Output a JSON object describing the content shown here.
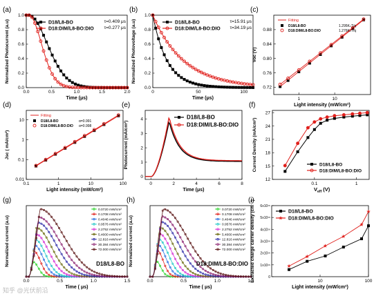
{
  "figure": {
    "watermark": "知乎 @光伏前沿"
  },
  "chart_data": [
    {
      "panel": "(a)",
      "type": "line",
      "xlabel": "Time (μs)",
      "ylabel": "Normalized  Photocurrent (a.u)",
      "xlim": [
        0.0,
        2.0
      ],
      "ylim": [
        0.0,
        1.0
      ],
      "xticks": [
        "0.0",
        "0.5",
        "1.0",
        "1.5",
        "2.0"
      ],
      "yticks": [
        "0.0",
        "0.2",
        "0.4",
        "0.6",
        "0.8",
        "1.0"
      ],
      "series": [
        {
          "name": "D18/L8-BO",
          "color": "#000000",
          "marker": "square",
          "tau": 0.409
        },
        {
          "name": "D18:DIM/L8-BO:DIO",
          "color": "#e0201c",
          "marker": "circle",
          "tau": 0.277
        }
      ],
      "annotations": [
        "τ=0.409 μs",
        "τ=0.277 μs"
      ]
    },
    {
      "panel": "(b)",
      "type": "line",
      "xlabel": "Time (μs)",
      "ylabel": "Normalized  Photovoltage (a.u)",
      "xlim": [
        0,
        110
      ],
      "ylim": [
        0.0,
        1.0
      ],
      "xticks": [
        "0",
        "50",
        "100"
      ],
      "yticks": [
        "0.0",
        "0.2",
        "0.4",
        "0.6",
        "0.8",
        "1.0"
      ],
      "series": [
        {
          "name": "D18/L8-BO",
          "color": "#000000",
          "marker": "square",
          "tau": 15.91
        },
        {
          "name": "D18:DIM/L8-BO:DIO",
          "color": "#e0201c",
          "marker": "circle",
          "tau": 34.19
        }
      ],
      "annotations": [
        "τ=15.91 μs",
        "τ=34.19 μs"
      ]
    },
    {
      "panel": "(c)",
      "type": "scatter",
      "xlabel": "Light intensity (mW/cm²)",
      "ylabel": "Voc (V)",
      "xscale": "log",
      "xlim": [
        0.2,
        100
      ],
      "ylim": [
        0.7,
        0.92
      ],
      "xticks": [
        "1",
        "10"
      ],
      "yticks": [
        "0.72",
        "0.76",
        "0.80",
        "0.84",
        "0.88"
      ],
      "legend": [
        "Fitting",
        "D18/L8-BO",
        "D18:DIM/L8-BO:DIO"
      ],
      "slopes": [
        "1.295KₖT/q",
        "1.276KₖT/q"
      ],
      "series": [
        {
          "name": "D18/L8-BO",
          "color": "#000000",
          "marker": "square",
          "x": [
            0.3,
            0.5,
            1.0,
            2.0,
            4.0,
            8.0,
            16.0,
            32.0,
            64.0
          ],
          "y": [
            0.722,
            0.739,
            0.763,
            0.787,
            0.811,
            0.835,
            0.859,
            0.883,
            0.907
          ]
        },
        {
          "name": "D18:DIM/L8-BO:DIO",
          "color": "#e0201c",
          "marker": "circle",
          "x": [
            0.3,
            0.5,
            1.0,
            2.0,
            4.0,
            8.0,
            16.0,
            32.0,
            64.0
          ],
          "y": [
            0.728,
            0.745,
            0.768,
            0.792,
            0.815,
            0.838,
            0.862,
            0.885,
            0.909
          ]
        }
      ]
    },
    {
      "panel": "(d)",
      "type": "scatter",
      "xlabel": "Light intensity (mW/cm²)",
      "ylabel": "Jsc ( mA/cm²)",
      "xscale": "log",
      "yscale": "log",
      "xlim": [
        0.1,
        100
      ],
      "ylim": [
        0.01,
        30
      ],
      "xticks": [
        "0.1",
        "1",
        "10",
        "100"
      ],
      "yticks": [
        "0.01",
        "0.1",
        "1",
        "10"
      ],
      "legend": [
        "Fitting",
        "D18/L8-BO",
        "D18:DIM/L8-BO:DIO"
      ],
      "alphas": [
        "α=0.991",
        "α=0.998"
      ],
      "series": [
        {
          "name": "D18/L8-BO",
          "color": "#000000",
          "marker": "square",
          "x": [
            0.2,
            0.4,
            0.8,
            1.6,
            3.2,
            6.4,
            12.8,
            25.6,
            72.0
          ],
          "y": [
            0.047,
            0.093,
            0.185,
            0.37,
            0.73,
            1.46,
            2.9,
            5.8,
            16.0
          ]
        },
        {
          "name": "D18:DIM/L8-BO:DIO",
          "color": "#e0201c",
          "marker": "circle",
          "x": [
            0.2,
            0.4,
            0.8,
            1.6,
            3.2,
            6.4,
            12.8,
            25.6,
            72.0
          ],
          "y": [
            0.05,
            0.1,
            0.2,
            0.4,
            0.8,
            1.6,
            3.2,
            6.4,
            17.5
          ]
        }
      ]
    },
    {
      "panel": "(e)",
      "type": "line",
      "xlabel": "Time (μs)",
      "ylabel": "Photocurrent (mA/cm²)",
      "xlim": [
        -0.5,
        8
      ],
      "ylim": [
        -0.2,
        4.6
      ],
      "xticks": [
        "0",
        "2",
        "4",
        "6",
        "8"
      ],
      "yticks": [
        "0",
        "1",
        "2",
        "3",
        "4"
      ],
      "series": [
        {
          "name": "D18/L8-BO",
          "color": "#000000",
          "marker": "square",
          "peak": 3.85,
          "peak_time": 1.6,
          "plateau": 1.05
        },
        {
          "name": "D18:DIM/L8-BO:DIO",
          "color": "#e0201c",
          "marker": "circle",
          "peak": 4.15,
          "peak_time": 1.6,
          "plateau": 1.1
        }
      ]
    },
    {
      "panel": "(f)",
      "type": "line",
      "xlabel": "V",
      "xlabel_sub": "eff",
      "xlabel_unit": " (V)",
      "ylabel": "Current Density (mA/cm²)",
      "xscale": "log",
      "xlim": [
        0.01,
        2
      ],
      "ylim": [
        12,
        27.5
      ],
      "xticks": [
        "0.1",
        "1"
      ],
      "yticks": [
        "12",
        "15",
        "18",
        "21",
        "24",
        "27"
      ],
      "series": [
        {
          "name": "D18/L8-BO",
          "color": "#000000",
          "marker": "square",
          "x": [
            0.02,
            0.04,
            0.07,
            0.1,
            0.14,
            0.2,
            0.3,
            0.5,
            0.8,
            1.2,
            1.8
          ],
          "y": [
            13.8,
            18.2,
            21.4,
            23.2,
            24.6,
            25.3,
            25.7,
            26.0,
            26.2,
            26.35,
            26.5
          ]
        },
        {
          "name": "D18:DIM/L8-BO:DIO",
          "color": "#e0201c",
          "marker": "circle",
          "x": [
            0.02,
            0.04,
            0.07,
            0.1,
            0.14,
            0.2,
            0.3,
            0.5,
            0.8,
            1.2,
            1.8
          ],
          "y": [
            15.1,
            20.1,
            23.6,
            24.9,
            25.6,
            26.0,
            26.3,
            26.5,
            26.7,
            26.85,
            27.0
          ]
        }
      ]
    },
    {
      "panel": "(g)",
      "type": "line",
      "xlabel": "Time ( μs)",
      "ylabel": "Normalized current (a.u)",
      "xlim": [
        0.0,
        1.5
      ],
      "ylim": [
        0,
        1.05
      ],
      "xticks": [
        "0.0",
        "0.5",
        "1.0",
        "1.5"
      ],
      "sample": "D18/L8-BO",
      "series": [
        {
          "name": "0.0720 mW/cm²",
          "color": "#2bd42b",
          "peak": 0.22,
          "peak_time": 0.1,
          "width": 0.11
        },
        {
          "name": "0.1708 mW/cm²",
          "color": "#e0201c",
          "peak": 0.38,
          "peak_time": 0.11,
          "width": 0.14
        },
        {
          "name": "0.4046 mW/cm²",
          "color": "#2a6fe0",
          "peak": 0.47,
          "peak_time": 0.12,
          "width": 0.18
        },
        {
          "name": "0.9576 mW/cm²",
          "color": "#1fc7c7",
          "peak": 0.55,
          "peak_time": 0.13,
          "width": 0.22
        },
        {
          "name": "2.2752 mW/cm²",
          "color": "#d42bd4",
          "peak": 0.63,
          "peak_time": 0.14,
          "width": 0.27
        },
        {
          "name": "5.4000 mW/cm²",
          "color": "#6b6b10",
          "peak": 0.72,
          "peak_time": 0.15,
          "width": 0.32
        },
        {
          "name": "12.816 mW/cm²",
          "color": "#2c2ca8",
          "peak": 0.8,
          "peak_time": 0.17,
          "width": 0.38
        },
        {
          "name": "30.384 mW/cm²",
          "color": "#8a1f6e",
          "peak": 0.88,
          "peak_time": 0.18,
          "width": 0.44
        },
        {
          "name": "72.000 mW/cm²",
          "color": "#5a1414",
          "peak": 1.0,
          "peak_time": 0.2,
          "width": 0.5
        }
      ]
    },
    {
      "panel": "(h)",
      "type": "line",
      "xlabel": "Time ( μs)",
      "ylabel": "Normalized current (a.u)",
      "xlim": [
        0.0,
        1.5
      ],
      "ylim": [
        0,
        1.05
      ],
      "xticks": [
        "0.0",
        "0.5",
        "1.0",
        "1.5"
      ],
      "sample": "D18:DIM/L8-BO:DIO",
      "series": [
        {
          "name": "0.0720 mW/cm²",
          "color": "#2bd42b",
          "peak": 0.23,
          "peak_time": 0.09,
          "width": 0.1
        },
        {
          "name": "0.1708 mW/cm²",
          "color": "#e0201c",
          "peak": 0.4,
          "peak_time": 0.1,
          "width": 0.13
        },
        {
          "name": "0.4046 mW/cm²",
          "color": "#2a6fe0",
          "peak": 0.48,
          "peak_time": 0.11,
          "width": 0.17
        },
        {
          "name": "0.9576 mW/cm²",
          "color": "#1fc7c7",
          "peak": 0.56,
          "peak_time": 0.12,
          "width": 0.21
        },
        {
          "name": "2.2752 mW/cm²",
          "color": "#d42bd4",
          "peak": 0.64,
          "peak_time": 0.13,
          "width": 0.26
        },
        {
          "name": "5.4000 mW/cm²",
          "color": "#6b6b10",
          "peak": 0.73,
          "peak_time": 0.14,
          "width": 0.31
        },
        {
          "name": "12.816 mW/cm²",
          "color": "#2c2ca8",
          "peak": 0.81,
          "peak_time": 0.16,
          "width": 0.37
        },
        {
          "name": "30.384 mW/cm²",
          "color": "#8a1f6e",
          "peak": 0.89,
          "peak_time": 0.17,
          "width": 0.43
        },
        {
          "name": "72.000 mW/cm²",
          "color": "#5a1414",
          "peak": 1.0,
          "peak_time": 0.19,
          "width": 0.49
        }
      ]
    },
    {
      "panel": "(i)",
      "type": "line",
      "xlabel": "Light intensity (mW/cm²)",
      "ylabel": "Extracted charge carrier density (cm⁻³)",
      "xscale": "log",
      "xlim": [
        1.0,
        100
      ],
      "ylim": [
        0,
        6e+16
      ],
      "xticks": [
        "10",
        "100"
      ],
      "yticks": [
        "0",
        "1x10¹⁶",
        "2x10¹⁶",
        "3x10¹⁶",
        "4x10¹⁶",
        "5x10¹⁶",
        "6x10¹⁶"
      ],
      "series": [
        {
          "name": "D18/L8-BO",
          "color": "#000000",
          "marker": "square",
          "x": [
            2.28,
            5.4,
            12.8,
            30.4,
            72.0,
            100.0
          ],
          "y": [
            6000000000000000.0,
            1.3e+16,
            1.75e+16,
            2.5e+16,
            3.2e+16,
            4.3e+16
          ]
        },
        {
          "name": "D18:DIM/L8-BO:DIO",
          "color": "#e0201c",
          "marker": "star",
          "x": [
            2.28,
            5.4,
            12.8,
            30.4,
            72.0,
            100.0
          ],
          "y": [
            9000000000000000.0,
            1.7e+16,
            2.6e+16,
            3.4e+16,
            4.4e+16,
            5.5e+16
          ]
        }
      ]
    }
  ]
}
